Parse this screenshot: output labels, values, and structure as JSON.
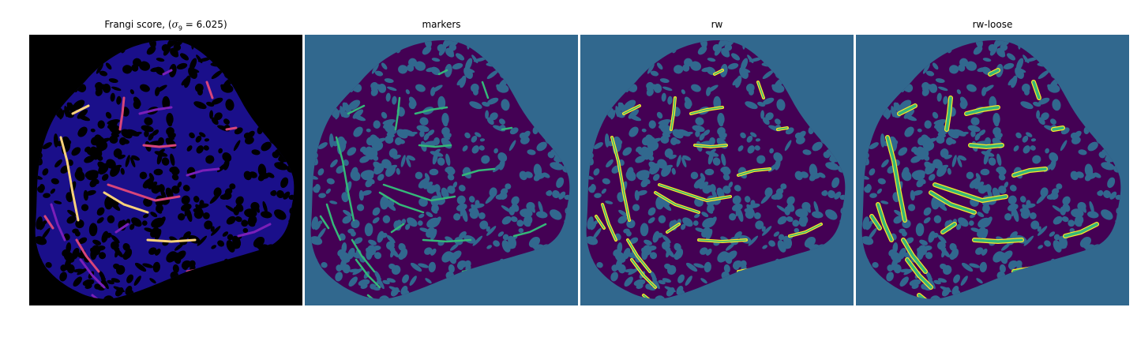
{
  "panels": [
    {
      "title_text": "Frangi score, (",
      "title_sigma": "σ",
      "title_sub": "9",
      "title_tail": " = 6.025)",
      "colormap": "magma"
    },
    {
      "title": "markers",
      "colormap": "viridis"
    },
    {
      "title": "rw",
      "colormap": "viridis"
    },
    {
      "title": "rw-loose",
      "colormap": "viridis"
    }
  ],
  "colors": {
    "frangi_background": "#000000",
    "frangi_tissue": "#1a0f8a",
    "frangi_vessel_low": "#7a1fb8",
    "frangi_vessel_mid": "#d8457a",
    "frangi_vessel_high": "#fcd27a",
    "label_background": "#31688e",
    "label_tissue": "#440154",
    "label_vessel_marker": "#35b779",
    "label_vessel_rw": "#fde725"
  }
}
